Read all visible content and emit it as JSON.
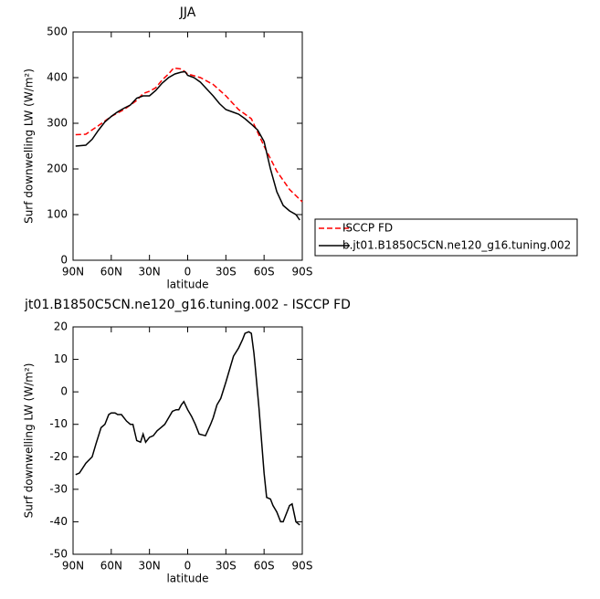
{
  "chart_data": [
    {
      "type": "line",
      "title": "JJA",
      "xlabel": "latitude",
      "ylabel": "Surf downwelling LW (W/m²)",
      "xlim": [
        90,
        -90
      ],
      "ylim": [
        0,
        500
      ],
      "xticks": [
        {
          "value": 90,
          "label": "90N"
        },
        {
          "value": 60,
          "label": "60N"
        },
        {
          "value": 30,
          "label": "30N"
        },
        0,
        {
          "value": -30,
          "label": "30S"
        },
        {
          "value": -60,
          "label": "60S"
        },
        {
          "value": -90,
          "label": "90S"
        }
      ],
      "yticks": [
        0,
        100,
        200,
        300,
        400,
        500
      ],
      "legend": "outside-lower-right",
      "series": [
        {
          "name": "ISCCP FD",
          "color": "#ff0000",
          "style": "dashed",
          "x": [
            88,
            80,
            70,
            60,
            50,
            40,
            35,
            30,
            25,
            20,
            15,
            11,
            5,
            0,
            -10,
            -20,
            -30,
            -40,
            -50,
            -60,
            -70,
            -80,
            -90
          ],
          "values": [
            275,
            276,
            295,
            315,
            330,
            350,
            365,
            370,
            378,
            395,
            408,
            421,
            419,
            408,
            400,
            385,
            360,
            330,
            310,
            250,
            195,
            155,
            128
          ]
        },
        {
          "name": "b.jt01.B1850C5CN.ne120_g16.tuning.002",
          "color": "#000000",
          "style": "solid",
          "x": [
            88,
            80,
            75,
            70,
            65,
            60,
            55,
            50,
            45,
            40,
            35,
            30,
            25,
            20,
            15,
            10,
            5,
            2,
            0,
            -5,
            -10,
            -15,
            -20,
            -25,
            -30,
            -35,
            -40,
            -45,
            -50,
            -55,
            -60,
            -65,
            -70,
            -75,
            -80,
            -85,
            -88
          ],
          "values": [
            250,
            252,
            265,
            285,
            303,
            315,
            325,
            333,
            340,
            355,
            360,
            360,
            372,
            388,
            400,
            408,
            412,
            413,
            405,
            400,
            390,
            375,
            360,
            343,
            330,
            325,
            320,
            310,
            298,
            285,
            260,
            200,
            150,
            120,
            108,
            100,
            88
          ]
        }
      ]
    },
    {
      "type": "line",
      "title": "jt01.B1850C5CN.ne120_g16.tuning.002 - ISCCP FD",
      "xlabel": "latitude",
      "ylabel": "Surf downwelling LW (W/m²)",
      "xlim": [
        90,
        -90
      ],
      "ylim": [
        -50,
        20
      ],
      "xticks": [
        {
          "value": 90,
          "label": "90N"
        },
        {
          "value": 60,
          "label": "60N"
        },
        {
          "value": 30,
          "label": "30N"
        },
        0,
        {
          "value": -30,
          "label": "30S"
        },
        {
          "value": -60,
          "label": "60S"
        },
        {
          "value": -90,
          "label": "90S"
        }
      ],
      "yticks": [
        -50,
        -40,
        -30,
        -20,
        -10,
        0,
        10,
        20
      ],
      "color": "#000000",
      "x": [
        88,
        85,
        80,
        75,
        72,
        68,
        65,
        62,
        60,
        57,
        55,
        52,
        48,
        45,
        43,
        40,
        37,
        35,
        33,
        30,
        27,
        24,
        21,
        18,
        15,
        12,
        9,
        7,
        5,
        3,
        0,
        -3,
        -6,
        -9,
        -14,
        -18,
        -20,
        -23,
        -26,
        -30,
        -33,
        -36,
        -40,
        -43,
        -45,
        -48,
        -50,
        -52,
        -53,
        -56,
        -58,
        -60,
        -62,
        -65,
        -67,
        -70,
        -73,
        -75,
        -78,
        -80,
        -82,
        -85,
        -88
      ],
      "values": [
        -25.5,
        -25,
        -22,
        -20,
        -16,
        -11,
        -10,
        -7,
        -6.5,
        -6.5,
        -7,
        -7,
        -9,
        -10,
        -10,
        -15,
        -15.5,
        -13,
        -15.5,
        -14,
        -13.5,
        -12,
        -11,
        -10,
        -8,
        -6,
        -5.5,
        -5.5,
        -4,
        -3,
        -5.5,
        -7.5,
        -10,
        -13,
        -13.5,
        -10,
        -8,
        -4,
        -2,
        3,
        7,
        11,
        13.5,
        16,
        18,
        18.5,
        18,
        12,
        8,
        -5,
        -15,
        -25,
        -32.5,
        -33,
        -35,
        -37,
        -40,
        -40,
        -37,
        -35,
        -34.5,
        -40,
        -41
      ]
    }
  ]
}
